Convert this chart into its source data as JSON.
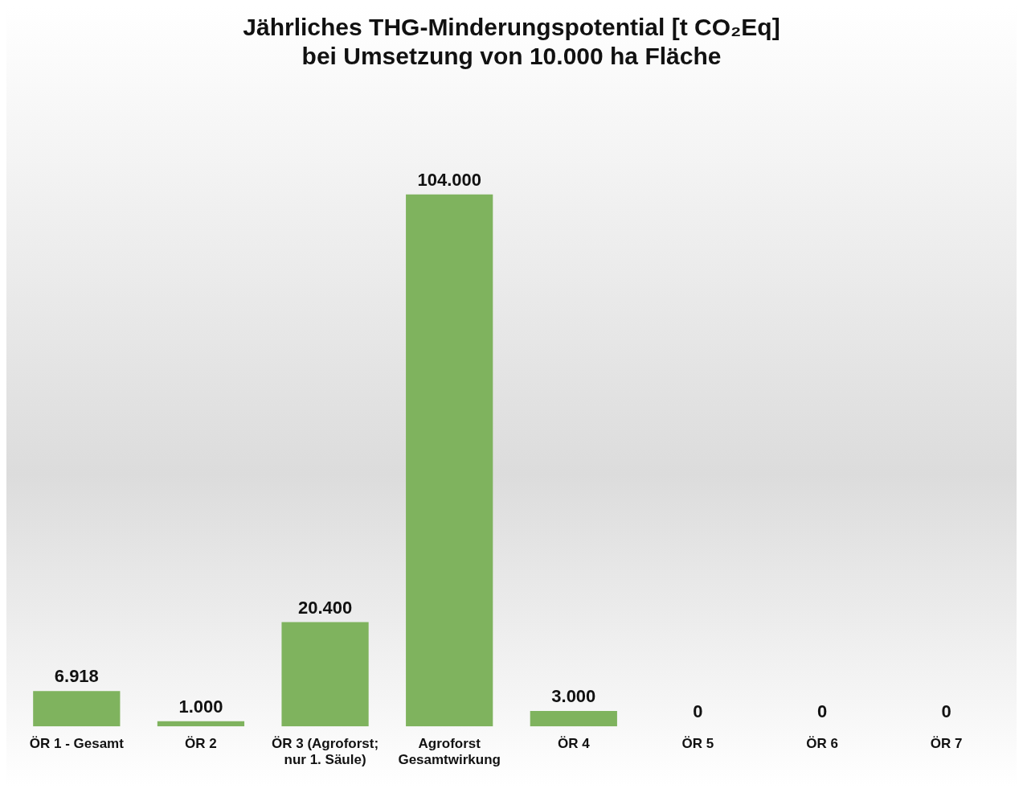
{
  "chart_data": {
    "type": "bar",
    "title": "Jährliches THG-Minderungspotential [t CO₂Eq]",
    "subtitle": "bei Umsetzung von 10.000 ha Fläche",
    "categories": [
      "ÖR 1 - Gesamt",
      "ÖR 2",
      "ÖR 3 (Agroforst; nur 1. Säule)",
      "Agroforst Gesamtwirkung",
      "ÖR 4",
      "ÖR 5",
      "ÖR 6",
      "ÖR 7"
    ],
    "values": [
      6918,
      1000,
      20400,
      104000,
      3000,
      0,
      0,
      0
    ],
    "value_labels": [
      "6.918",
      "1.000",
      "20.400",
      "104.000",
      "3.000",
      "0",
      "0",
      "0"
    ],
    "color": "#7fb35e",
    "grid": false,
    "legend": false
  }
}
